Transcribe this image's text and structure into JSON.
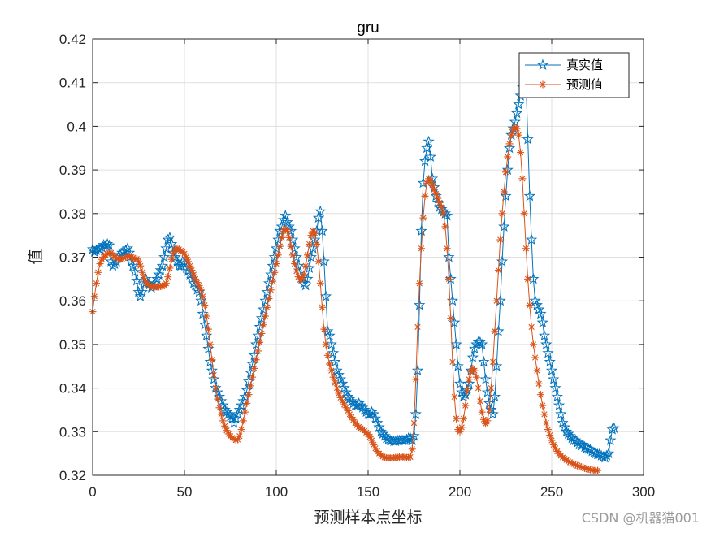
{
  "chart_data": {
    "type": "line",
    "title": "gru",
    "xlabel": "预测样本点坐标",
    "ylabel": "值",
    "xlim": [
      0,
      300
    ],
    "ylim": [
      0.32,
      0.42
    ],
    "xticks": [
      "0",
      "50",
      "100",
      "150",
      "200",
      "250",
      "300"
    ],
    "yticks": [
      "0.32",
      "0.33",
      "0.34",
      "0.35",
      "0.36",
      "0.37",
      "0.38",
      "0.39",
      "0.4",
      "0.41",
      "0.42"
    ],
    "grid": true,
    "legend_position": "top-right",
    "x_start": 0,
    "series": [
      {
        "name": "真实值",
        "marker": "pentagram",
        "color": "#0072BD",
        "values": [
          0.3718,
          0.3712,
          0.3716,
          0.372,
          0.3718,
          0.3722,
          0.3728,
          0.3726,
          0.373,
          0.3727,
          0.369,
          0.368,
          0.3684,
          0.369,
          0.37,
          0.3705,
          0.371,
          0.3712,
          0.3716,
          0.372,
          0.371,
          0.369,
          0.368,
          0.3666,
          0.3646,
          0.362,
          0.361,
          0.362,
          0.364,
          0.365,
          0.364,
          0.3637,
          0.363,
          0.3635,
          0.364,
          0.365,
          0.366,
          0.367,
          0.368,
          0.37,
          0.372,
          0.374,
          0.3745,
          0.373,
          0.371,
          0.37,
          0.369,
          0.368,
          0.368,
          0.369,
          0.3686,
          0.3675,
          0.3668,
          0.366,
          0.365,
          0.364,
          0.3635,
          0.3625,
          0.362,
          0.36,
          0.357,
          0.3545,
          0.352,
          0.349,
          0.346,
          0.344,
          0.342,
          0.34,
          0.339,
          0.338,
          0.337,
          0.336,
          0.335,
          0.3345,
          0.334,
          0.3335,
          0.333,
          0.332,
          0.333,
          0.334,
          0.335,
          0.336,
          0.337,
          0.338,
          0.3395,
          0.3415,
          0.3435,
          0.3455,
          0.3475,
          0.35,
          0.352,
          0.354,
          0.356,
          0.358,
          0.36,
          0.362,
          0.364,
          0.366,
          0.368,
          0.37,
          0.372,
          0.374,
          0.376,
          0.377,
          0.3785,
          0.3795,
          0.378,
          0.377,
          0.376,
          0.374,
          0.372,
          0.37,
          0.368,
          0.3665,
          0.365,
          0.364,
          0.3635,
          0.365,
          0.3675,
          0.37,
          0.372,
          0.374,
          0.376,
          0.379,
          0.3805,
          0.376,
          0.369,
          0.361,
          0.353,
          0.352,
          0.35,
          0.348,
          0.346,
          0.344,
          0.343,
          0.342,
          0.341,
          0.34,
          0.339,
          0.338,
          0.3375,
          0.337,
          0.3365,
          0.336,
          0.336,
          0.3365,
          0.336,
          0.3355,
          0.335,
          0.3345,
          0.334,
          0.334,
          0.3345,
          0.334,
          0.333,
          0.332,
          0.331,
          0.33,
          0.3295,
          0.329,
          0.3285,
          0.3282,
          0.328,
          0.328,
          0.3278,
          0.3278,
          0.328,
          0.328,
          0.3282,
          0.328,
          0.328,
          0.3282,
          0.3285,
          0.3285,
          0.328,
          0.329,
          0.334,
          0.344,
          0.359,
          0.376,
          0.387,
          0.392,
          0.395,
          0.3965,
          0.393,
          0.388,
          0.386,
          0.384,
          0.3825,
          0.3815,
          0.381,
          0.3805,
          0.38,
          0.3795,
          0.37,
          0.365,
          0.36,
          0.355,
          0.35,
          0.345,
          0.341,
          0.339,
          0.338,
          0.3385,
          0.3395,
          0.341,
          0.344,
          0.347,
          0.349,
          0.35,
          0.3505,
          0.3505,
          0.35,
          0.346,
          0.342,
          0.339,
          0.3365,
          0.335,
          0.334,
          0.338,
          0.345,
          0.353,
          0.36,
          0.369,
          0.377,
          0.384,
          0.39,
          0.395,
          0.398,
          0.3995,
          0.401,
          0.403,
          0.405,
          0.407,
          0.409,
          0.413,
          0.41,
          0.397,
          0.384,
          0.374,
          0.365,
          0.36,
          0.359,
          0.358,
          0.357,
          0.355,
          0.352,
          0.35,
          0.348,
          0.346,
          0.344,
          0.342,
          0.34,
          0.338,
          0.336,
          0.334,
          0.332,
          0.331,
          0.33,
          0.3295,
          0.329,
          0.3285,
          0.328,
          0.328,
          0.3275,
          0.327,
          0.3268,
          0.327,
          0.3265,
          0.3262,
          0.326,
          0.3258,
          0.3255,
          0.3252,
          0.325,
          0.3248,
          0.3248,
          0.3245,
          0.3242,
          0.324,
          0.3245,
          0.325,
          0.328,
          0.3305,
          0.3308
        ]
      },
      {
        "name": "预测值",
        "marker": "asterisk",
        "color": "#D95319",
        "values": [
          0.3575,
          0.361,
          0.364,
          0.3665,
          0.3685,
          0.3695,
          0.37,
          0.3705,
          0.3708,
          0.371,
          0.371,
          0.3706,
          0.37,
          0.3698,
          0.3696,
          0.3695,
          0.3696,
          0.3698,
          0.37,
          0.3702,
          0.3702,
          0.37,
          0.3698,
          0.3697,
          0.3696,
          0.369,
          0.368,
          0.3665,
          0.3652,
          0.3643,
          0.3638,
          0.3635,
          0.3633,
          0.3632,
          0.3632,
          0.3632,
          0.3632,
          0.3633,
          0.3634,
          0.3635,
          0.364,
          0.3655,
          0.3675,
          0.3695,
          0.371,
          0.3718,
          0.372,
          0.3718,
          0.3715,
          0.3712,
          0.3708,
          0.37,
          0.369,
          0.368,
          0.367,
          0.366,
          0.365,
          0.3642,
          0.3635,
          0.3625,
          0.361,
          0.359,
          0.3565,
          0.3535,
          0.35,
          0.3465,
          0.343,
          0.34,
          0.3375,
          0.3355,
          0.334,
          0.3325,
          0.3313,
          0.3303,
          0.3295,
          0.329,
          0.3286,
          0.3283,
          0.3281,
          0.3282,
          0.329,
          0.3305,
          0.3325,
          0.3345,
          0.3365,
          0.3385,
          0.3405,
          0.3425,
          0.3445,
          0.3465,
          0.3485,
          0.3505,
          0.3525,
          0.3545,
          0.3565,
          0.3585,
          0.3605,
          0.3625,
          0.3645,
          0.3665,
          0.3685,
          0.3705,
          0.3725,
          0.3745,
          0.376,
          0.3765,
          0.376,
          0.3745,
          0.3725,
          0.3705,
          0.3685,
          0.3668,
          0.3655,
          0.3648,
          0.365,
          0.366,
          0.368,
          0.3705,
          0.373,
          0.375,
          0.376,
          0.3755,
          0.373,
          0.369,
          0.364,
          0.3585,
          0.3535,
          0.35,
          0.3475,
          0.3455,
          0.344,
          0.3425,
          0.3412,
          0.34,
          0.3388,
          0.3378,
          0.337,
          0.3362,
          0.3355,
          0.3348,
          0.334,
          0.3333,
          0.3327,
          0.332,
          0.3315,
          0.3311,
          0.3308,
          0.3305,
          0.3302,
          0.3298,
          0.3294,
          0.3288,
          0.328,
          0.327,
          0.3262,
          0.3255,
          0.325,
          0.3246,
          0.3243,
          0.3241,
          0.324,
          0.324,
          0.324,
          0.324,
          0.324,
          0.3241,
          0.3241,
          0.3242,
          0.3242,
          0.3242,
          0.3242,
          0.3241,
          0.3241,
          0.3242,
          0.326,
          0.332,
          0.342,
          0.354,
          0.364,
          0.372,
          0.379,
          0.384,
          0.387,
          0.388,
          0.3875,
          0.3865,
          0.3855,
          0.3845,
          0.3835,
          0.3825,
          0.3815,
          0.38,
          0.377,
          0.372,
          0.365,
          0.356,
          0.346,
          0.338,
          0.333,
          0.3305,
          0.33,
          0.331,
          0.333,
          0.336,
          0.3395,
          0.342,
          0.3437,
          0.3445,
          0.344,
          0.3425,
          0.34,
          0.337,
          0.3345,
          0.3328,
          0.3318,
          0.3325,
          0.335,
          0.34,
          0.346,
          0.353,
          0.36,
          0.367,
          0.374,
          0.38,
          0.385,
          0.3895,
          0.393,
          0.396,
          0.398,
          0.3992,
          0.3998,
          0.3995,
          0.398,
          0.394,
          0.388,
          0.38,
          0.372,
          0.365,
          0.359,
          0.354,
          0.35,
          0.347,
          0.344,
          0.341,
          0.3385,
          0.336,
          0.334,
          0.332,
          0.3305,
          0.3292,
          0.328,
          0.327,
          0.3262,
          0.3255,
          0.325,
          0.3245,
          0.3241,
          0.3238,
          0.3235,
          0.3232,
          0.323,
          0.3228,
          0.3226,
          0.3224,
          0.3222,
          0.3221,
          0.3219,
          0.3218,
          0.3216,
          0.3215,
          0.3214,
          0.3213,
          0.3212,
          0.3211,
          0.3211,
          0.3211
        ]
      }
    ]
  },
  "watermark": "CSDN @机器猫001"
}
